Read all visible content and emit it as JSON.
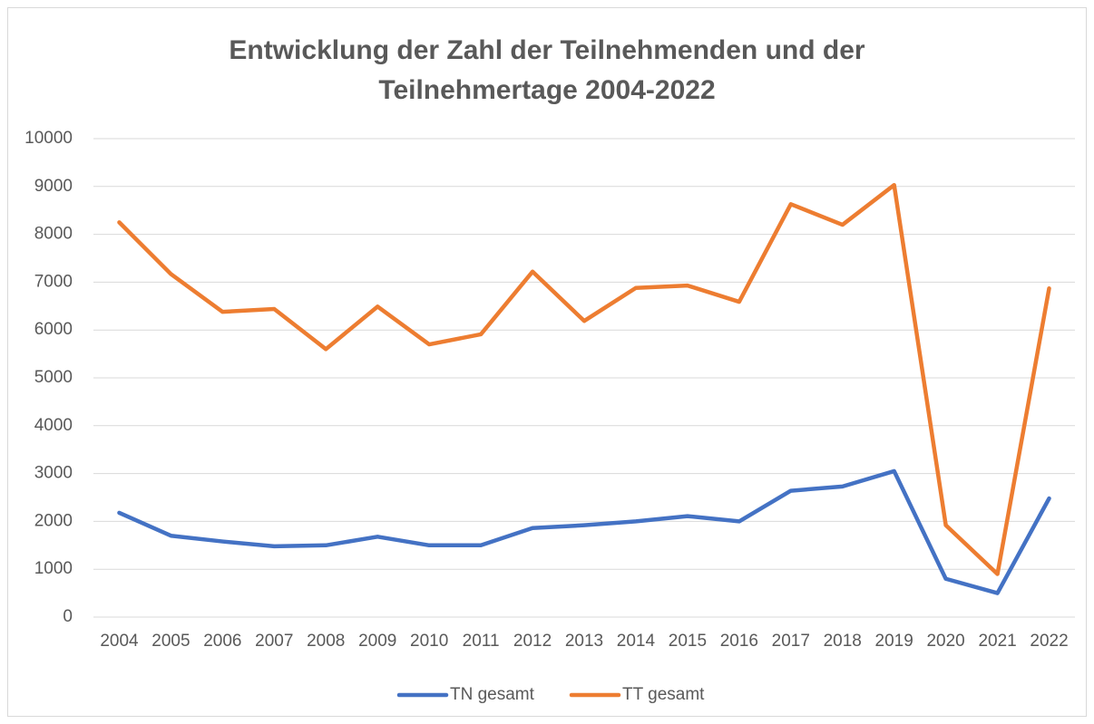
{
  "chart_data": {
    "type": "line",
    "title": [
      "Entwicklung der Zahl der Teilnehmenden und der",
      "Teilnehmertage 2004-2022"
    ],
    "categories": [
      "2004",
      "2005",
      "2006",
      "2007",
      "2008",
      "2009",
      "2010",
      "2011",
      "2012",
      "2013",
      "2014",
      "2015",
      "2016",
      "2017",
      "2018",
      "2019",
      "2020",
      "2021",
      "2022"
    ],
    "series": [
      {
        "name": "TN gesamt",
        "color": "#4472c4",
        "values": [
          2180,
          1700,
          1580,
          1480,
          1500,
          1680,
          1500,
          1500,
          1860,
          1920,
          2000,
          2110,
          2000,
          2640,
          2730,
          3050,
          800,
          500,
          2480
        ]
      },
      {
        "name": "TT gesamt",
        "color": "#ed7d31",
        "values": [
          8250,
          7170,
          6380,
          6440,
          5600,
          6490,
          5700,
          5910,
          7220,
          6190,
          6880,
          6930,
          6590,
          8630,
          8200,
          9030,
          1920,
          900,
          6870
        ]
      }
    ],
    "ylim": [
      0,
      10000
    ],
    "yticks": [
      0,
      1000,
      2000,
      3000,
      4000,
      5000,
      6000,
      7000,
      8000,
      9000,
      10000
    ],
    "grid": true,
    "legend": "bottom"
  }
}
